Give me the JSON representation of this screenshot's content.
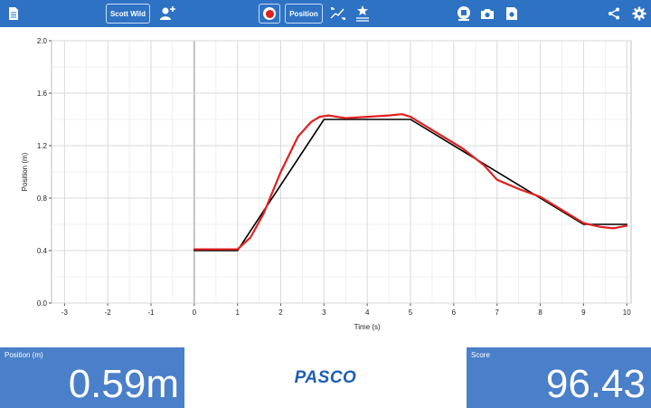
{
  "toolbar": {
    "user_name": "Scott Wild",
    "sensor_label": "Position",
    "icons": [
      "document-icon",
      "add-user-icon",
      "record-icon",
      "scale-fit-icon",
      "highlight-list-icon",
      "data-center-icon",
      "camera-icon",
      "snapshot-icon",
      "share-icon",
      "settings-icon"
    ]
  },
  "colors": {
    "toolbar": "#2e72c4",
    "meter_panel": "#4a7fc9",
    "target_line": "#000000",
    "measured_line": "#e02020",
    "logo": "#1e5db0"
  },
  "chart_data": {
    "type": "line",
    "xlabel": "Time (s)",
    "ylabel": "Position (m)",
    "xlim": [
      -3.3,
      10.1
    ],
    "ylim": [
      0.0,
      2.0
    ],
    "x_ticks": [
      "-3",
      "-2",
      "-1",
      "0",
      "1",
      "2",
      "3",
      "4",
      "5",
      "6",
      "7",
      "8",
      "9",
      "10"
    ],
    "y_ticks": [
      "0.0",
      "0.4",
      "0.8",
      "1.2",
      "1.6",
      "2.0"
    ],
    "grid": true,
    "series": [
      {
        "color": "#000000",
        "x": [
          0,
          1,
          3,
          5,
          9,
          10
        ],
        "y": [
          0.4,
          0.4,
          1.4,
          1.4,
          0.6,
          0.6
        ]
      },
      {
        "color": "#e02020",
        "x": [
          0,
          0.5,
          1.0,
          1.3,
          1.6,
          2.0,
          2.4,
          2.7,
          2.9,
          3.1,
          3.5,
          4.0,
          4.5,
          4.8,
          5.0,
          5.3,
          5.7,
          6.2,
          6.7,
          7.0,
          7.5,
          8.0,
          8.5,
          9.0,
          9.4,
          9.7,
          10.0
        ],
        "y": [
          0.41,
          0.41,
          0.41,
          0.5,
          0.68,
          1.0,
          1.27,
          1.38,
          1.42,
          1.43,
          1.41,
          1.42,
          1.43,
          1.44,
          1.42,
          1.36,
          1.28,
          1.18,
          1.05,
          0.94,
          0.87,
          0.81,
          0.71,
          0.61,
          0.58,
          0.57,
          0.59
        ]
      }
    ]
  },
  "meters": {
    "position_label": "Position (m)",
    "position_value": "0.59m",
    "score_label": "Score",
    "score_value": "96.43"
  },
  "logo_text": "PASCO"
}
